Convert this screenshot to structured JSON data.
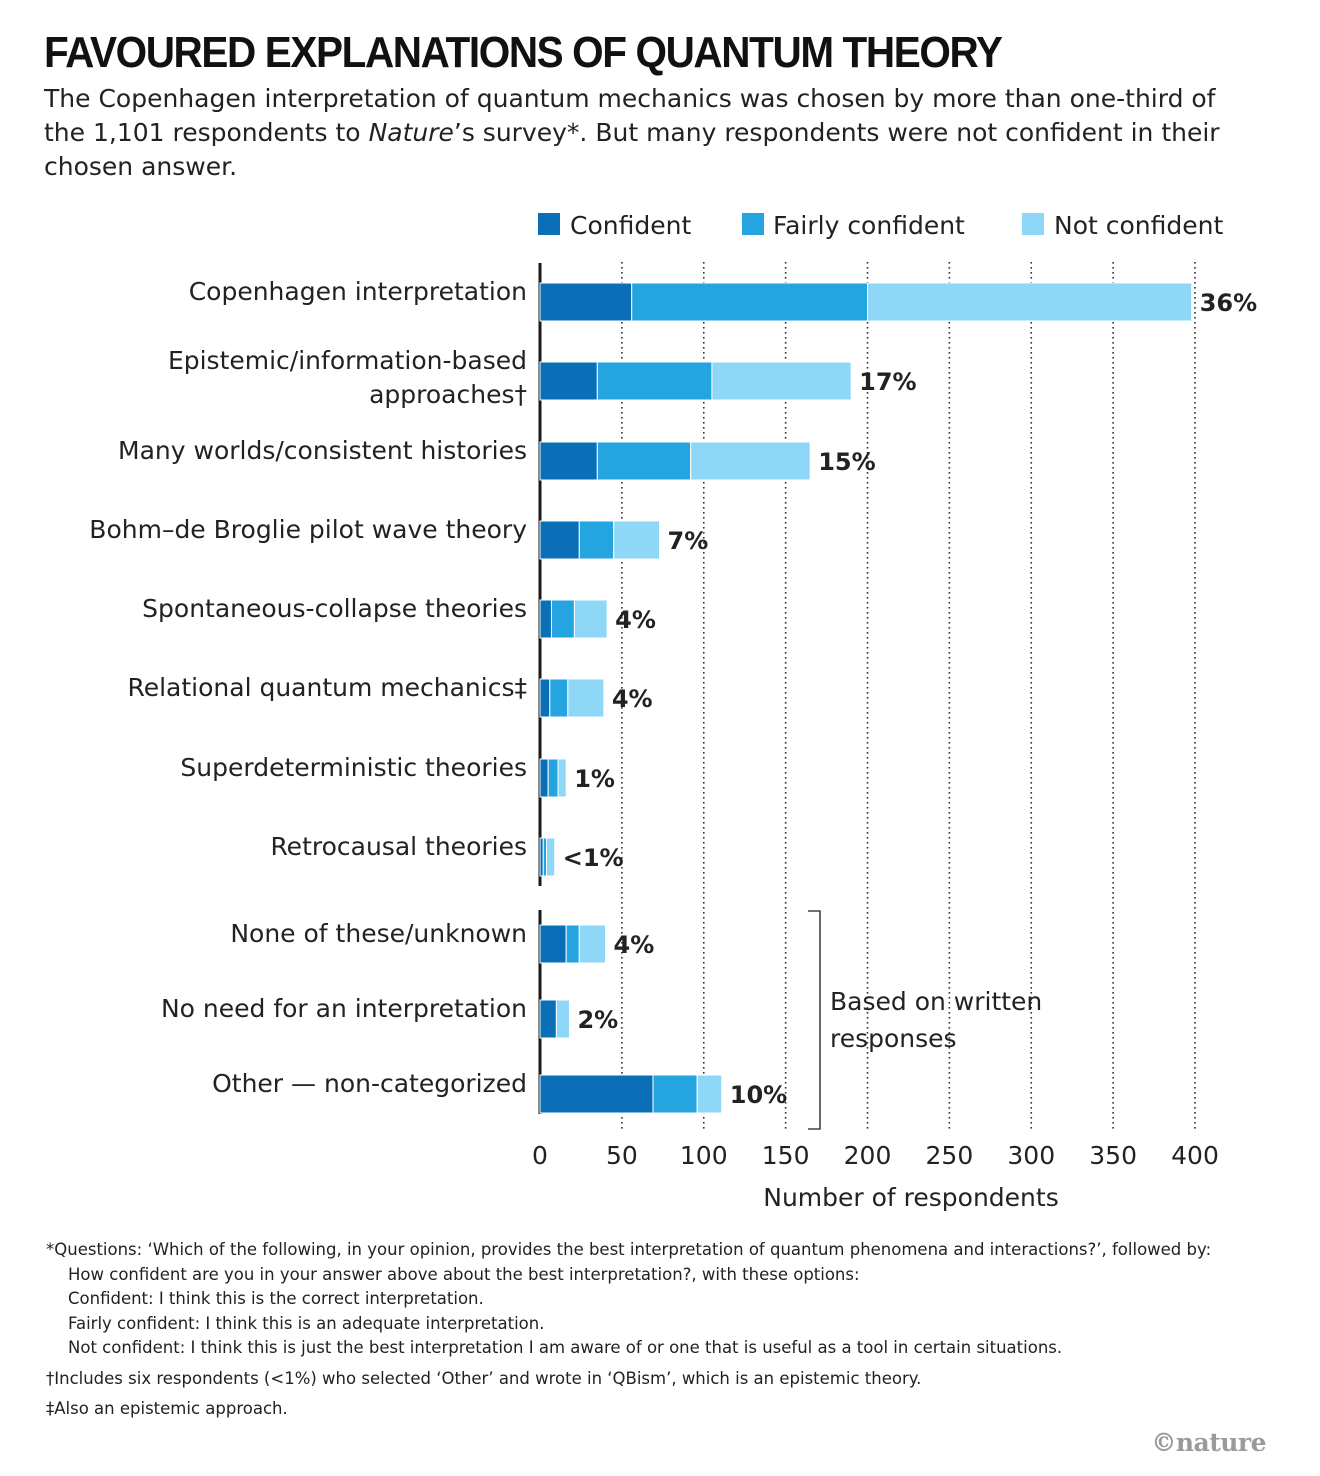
{
  "title": "FAVOURED EXPLANATIONS OF QUANTUM THEORY",
  "subtitle": {
    "part1": "The Copenhagen interpretation of quantum mechanics was chosen by more than one-third of the 1,101 respondents to ",
    "italic": "Nature",
    "part2": "’s survey*. But many respondents were not confident in their chosen answer."
  },
  "colors": {
    "confident": "#0b6fb8",
    "fairly": "#24a5e0",
    "not": "#8fd7f6"
  },
  "chart_data": {
    "type": "bar",
    "orientation": "horizontal",
    "stacked": true,
    "xlabel": "Number of respondents",
    "xlim": [
      0,
      400
    ],
    "xticks": [
      "0",
      "50",
      "100",
      "150",
      "200",
      "250",
      "300",
      "350",
      "400"
    ],
    "grid": "vertical dotted",
    "legend_position": "top-right",
    "categories": [
      "Copenhagen interpretation",
      "Epistemic/information-based approaches†",
      "Many worlds/consistent histories",
      "Bohm–de Broglie pilot wave theory",
      "Spontaneous-collapse theories",
      "Relational quantum mechanics‡",
      "Superdeterministic theories",
      "Retrocausal theories",
      "None of these/unknown",
      "No need for an interpretation",
      "Other — non-categorized"
    ],
    "series": [
      {
        "name": "Confident",
        "values": [
          56,
          35,
          35,
          24,
          7,
          6,
          5,
          2,
          16,
          10,
          69
        ]
      },
      {
        "name": "Fairly confident",
        "values": [
          144,
          70,
          57,
          21,
          14,
          11,
          6,
          2,
          8,
          0,
          27
        ]
      },
      {
        "name": "Not confident",
        "values": [
          198,
          85,
          73,
          28,
          20,
          22,
          5,
          5,
          16,
          8,
          15
        ]
      }
    ],
    "percent_labels": [
      "36%",
      "17%",
      "15%",
      "7%",
      "4%",
      "4%",
      "1%",
      "<1%",
      "4%",
      "2%",
      "10%"
    ],
    "bracket_label": "Based on written responses",
    "bracket_categories": [
      "None of these/unknown",
      "No need for an interpretation",
      "Other — non-categorized"
    ]
  },
  "footnotes": {
    "q1": "*Questions: ‘Which of the following, in your opinion, provides the best interpretation of quantum phenomena and interactions?’, followed by:",
    "q2": "How confident are you in your answer above about the best interpretation?, with these options:",
    "q3": "Confident: I think this is the correct interpretation.",
    "q4": "Fairly confident: I think this is an adequate interpretation.",
    "q5": "Not confident: I think this is just the best interpretation I am aware of or one that is useful as a tool in certain situations.",
    "dagger": "†Includes six respondents (<1%) who selected ‘Other’ and wrote in ‘QBism’, which is an epistemic theory.",
    "ddagger": "‡Also an epistemic approach."
  },
  "credit": "©nature"
}
